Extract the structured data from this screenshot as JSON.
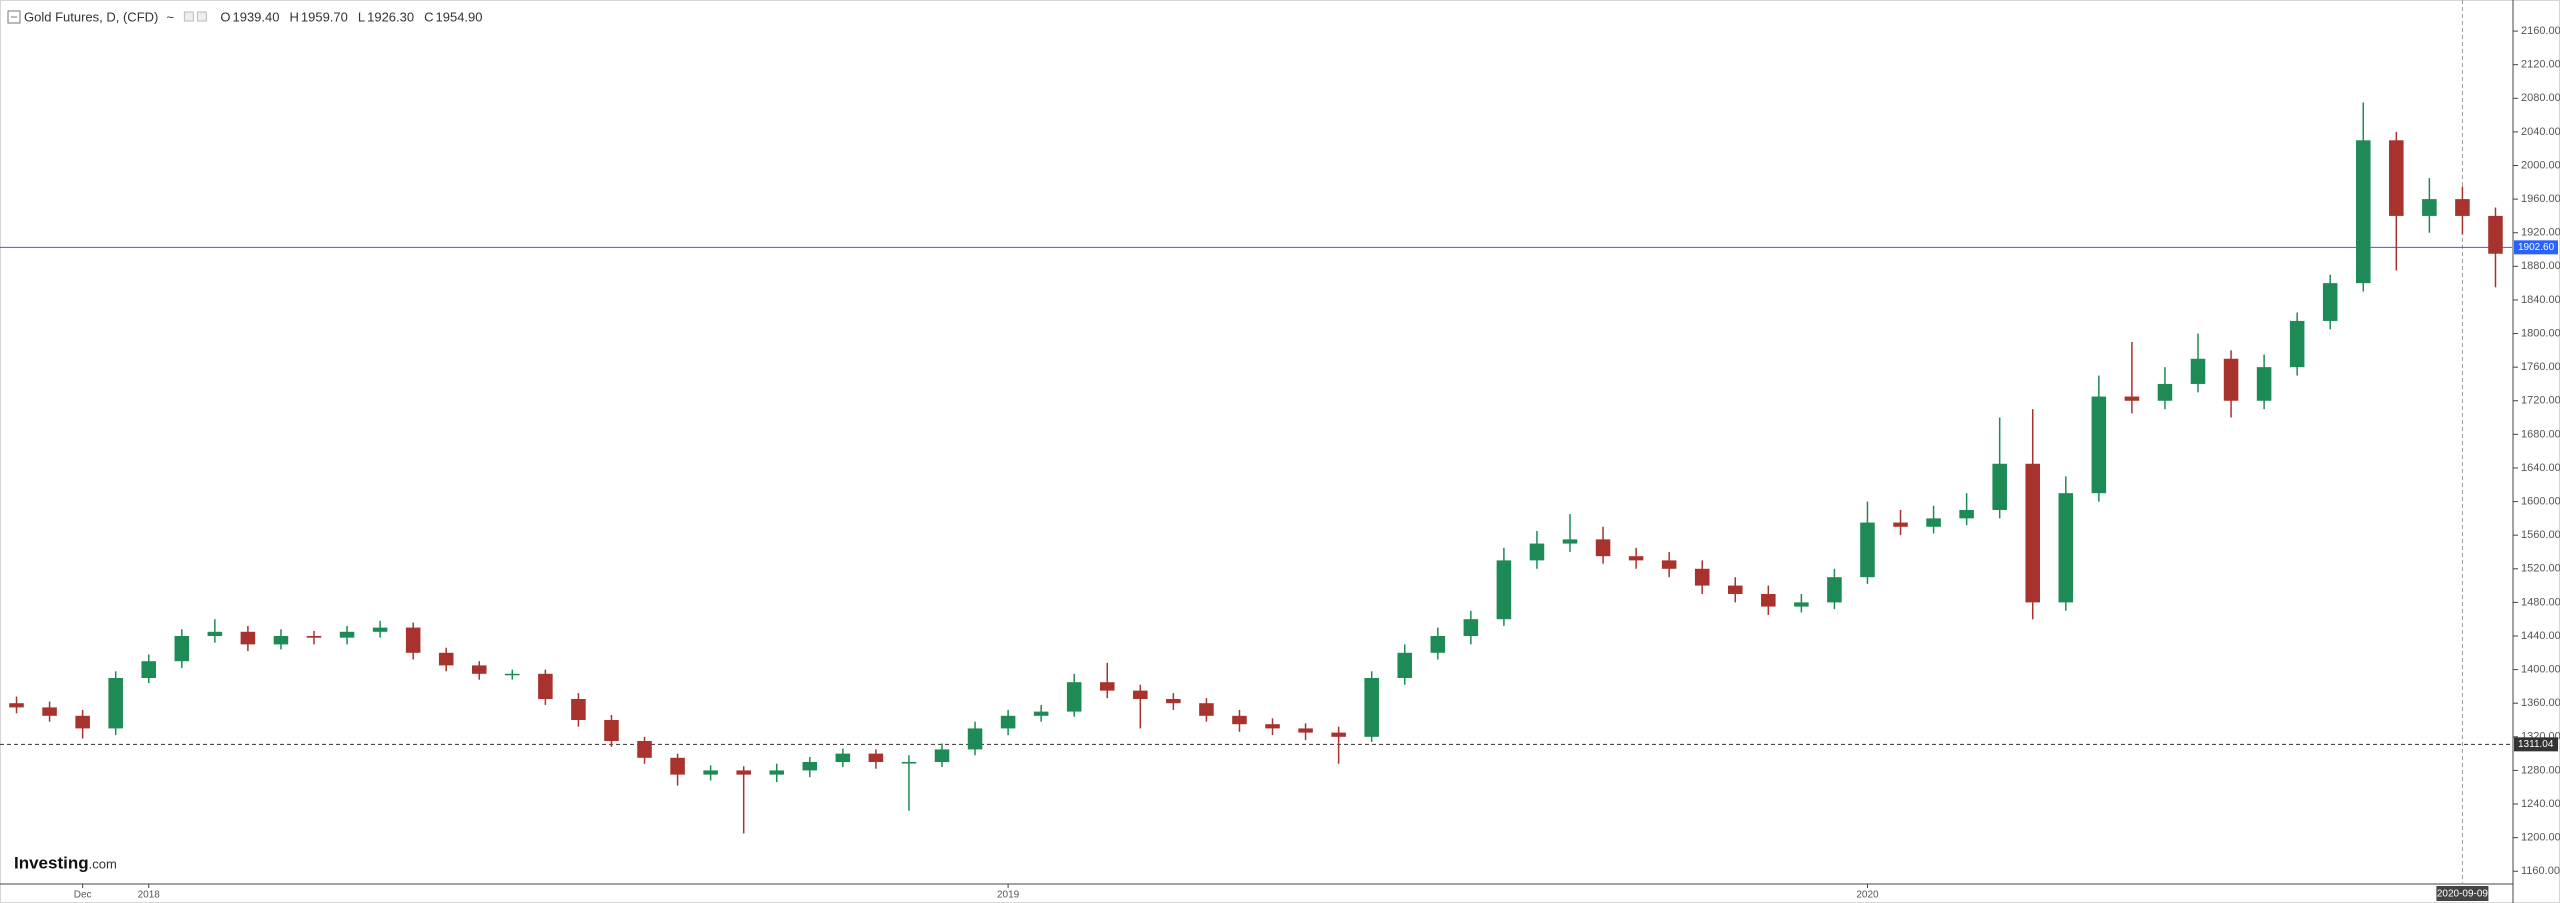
{
  "chart_data": {
    "type": "candlestick",
    "title": "Gold Futures, D, (CFD)",
    "ohlc_legend": [
      {
        "key": "O",
        "value": "1939.40"
      },
      {
        "key": "H",
        "value": "1959.70"
      },
      {
        "key": "L",
        "value": "1926.30"
      },
      {
        "key": "C",
        "value": "1954.90"
      }
    ],
    "logo": [
      "Investing",
      ".com"
    ],
    "categories": [
      null,
      null,
      "Dec",
      null,
      "2018",
      null,
      null,
      null,
      null,
      null,
      null,
      null,
      null,
      null,
      null,
      null,
      null,
      null,
      null,
      null,
      null,
      null,
      null,
      null,
      null,
      null,
      null,
      null,
      null,
      null,
      "2019",
      null,
      null,
      null,
      null,
      null,
      null,
      null,
      null,
      null,
      null,
      null,
      null,
      null,
      null,
      null,
      null,
      null,
      null,
      null,
      null,
      null,
      null,
      null,
      null,
      null,
      "2020",
      null,
      null,
      null,
      null,
      null,
      null,
      null,
      null,
      null,
      null,
      null,
      null,
      null,
      null,
      null,
      null,
      null,
      "2020-09-09",
      null
    ],
    "crosshair": true,
    "open": [
      1360,
      1355,
      1345,
      1330,
      1390,
      1410,
      1440,
      1445,
      1430,
      1440,
      1438,
      1445,
      1450,
      1420,
      1405,
      1395,
      1395,
      1365,
      1340,
      1315,
      1295,
      1275,
      1280,
      1275,
      1280,
      1290,
      1300,
      1290,
      1290,
      1305,
      1330,
      1345,
      1350,
      1385,
      1375,
      1365,
      1360,
      1345,
      1335,
      1330,
      1325,
      1320,
      1390,
      1420,
      1440,
      1460,
      1530,
      1550,
      1555,
      1535,
      1530,
      1520,
      1500,
      1490,
      1475,
      1480,
      1510,
      1575,
      1570,
      1580,
      1590,
      1645,
      1480,
      1610,
      1725,
      1720,
      1740,
      1770,
      1720,
      1760,
      1815,
      1860,
      2030,
      1940,
      1960,
      1940
    ],
    "high": [
      1368,
      1362,
      1352,
      1398,
      1418,
      1448,
      1460,
      1452,
      1448,
      1446,
      1452,
      1458,
      1456,
      1426,
      1410,
      1400,
      1400,
      1372,
      1346,
      1320,
      1300,
      1286,
      1285,
      1288,
      1296,
      1306,
      1305,
      1298,
      1312,
      1338,
      1352,
      1358,
      1395,
      1408,
      1382,
      1372,
      1366,
      1352,
      1342,
      1336,
      1332,
      1398,
      1430,
      1450,
      1470,
      1545,
      1565,
      1585,
      1570,
      1545,
      1540,
      1530,
      1510,
      1500,
      1490,
      1520,
      1600,
      1590,
      1595,
      1610,
      1700,
      1710,
      1630,
      1750,
      1790,
      1760,
      1800,
      1780,
      1775,
      1825,
      1870,
      2075,
      2040,
      1985,
      1975,
      1950
    ],
    "low": [
      1348,
      1338,
      1318,
      1322,
      1384,
      1402,
      1432,
      1422,
      1424,
      1430,
      1430,
      1438,
      1412,
      1398,
      1388,
      1388,
      1358,
      1332,
      1308,
      1288,
      1262,
      1268,
      1205,
      1266,
      1272,
      1284,
      1282,
      1232,
      1284,
      1298,
      1322,
      1338,
      1344,
      1366,
      1330,
      1352,
      1338,
      1326,
      1322,
      1316,
      1288,
      1314,
      1382,
      1412,
      1430,
      1452,
      1520,
      1540,
      1526,
      1520,
      1510,
      1490,
      1480,
      1465,
      1468,
      1472,
      1502,
      1560,
      1562,
      1572,
      1580,
      1460,
      1470,
      1600,
      1705,
      1710,
      1730,
      1700,
      1710,
      1750,
      1805,
      1850,
      1875,
      1920,
      1918,
      1855
    ],
    "close": [
      1355,
      1345,
      1330,
      1390,
      1410,
      1440,
      1445,
      1430,
      1440,
      1438,
      1445,
      1450,
      1420,
      1405,
      1395,
      1395,
      1365,
      1340,
      1315,
      1295,
      1275,
      1280,
      1275,
      1280,
      1290,
      1300,
      1290,
      1290,
      1305,
      1330,
      1345,
      1350,
      1385,
      1375,
      1365,
      1360,
      1345,
      1335,
      1330,
      1325,
      1320,
      1390,
      1420,
      1440,
      1460,
      1530,
      1550,
      1555,
      1535,
      1530,
      1520,
      1500,
      1490,
      1475,
      1480,
      1510,
      1575,
      1570,
      1580,
      1590,
      1645,
      1480,
      1610,
      1725,
      1720,
      1740,
      1770,
      1720,
      1760,
      1815,
      1860,
      2030,
      1940,
      1960,
      1940,
      1895
    ],
    "up_color": "#1e8a55",
    "down_color": "#a8322d",
    "ylim": [
      1146,
      2197
    ],
    "yticks": [
      {
        "value": 1160,
        "label": "1160.00"
      },
      {
        "value": 1200,
        "label": "1200.00"
      },
      {
        "value": 1240,
        "label": "1240.00"
      },
      {
        "value": 1280,
        "label": "1280.00"
      },
      {
        "value": 1320,
        "label": "1320.00"
      },
      {
        "value": 1360,
        "label": "1360.00"
      },
      {
        "value": 1400,
        "label": "1400.00"
      },
      {
        "value": 1440,
        "label": "1440.00"
      },
      {
        "value": 1480,
        "label": "1480.00"
      },
      {
        "value": 1520,
        "label": "1520.00"
      },
      {
        "value": 1560,
        "label": "1560.00"
      },
      {
        "value": 1600,
        "label": "1600.00"
      },
      {
        "value": 1640,
        "label": "1640.00"
      },
      {
        "value": 1680,
        "label": "1680.00"
      },
      {
        "value": 1720,
        "label": "1720.00"
      },
      {
        "value": 1760,
        "label": "1760.00"
      },
      {
        "value": 1800,
        "label": "1800.00"
      },
      {
        "value": 1840,
        "label": "1840.00"
      },
      {
        "value": 1880,
        "label": "1880.00"
      },
      {
        "value": 1920,
        "label": "1920.00"
      },
      {
        "value": 1960,
        "label": "1960.00"
      },
      {
        "value": 2000,
        "label": "2000.00"
      },
      {
        "value": 2040,
        "label": "2040.00"
      },
      {
        "value": 2080,
        "label": "2080.00"
      },
      {
        "value": 2120,
        "label": "2120.00"
      },
      {
        "value": 2160,
        "label": "2160.00"
      }
    ],
    "grid": false,
    "price_lines": [
      {
        "value": 1902.6,
        "label": "1902.60",
        "color": "#2962ff",
        "dashed": false
      },
      {
        "value": 1311.04,
        "label": "1311.04",
        "color": "#333333",
        "dashed": true
      }
    ]
  }
}
